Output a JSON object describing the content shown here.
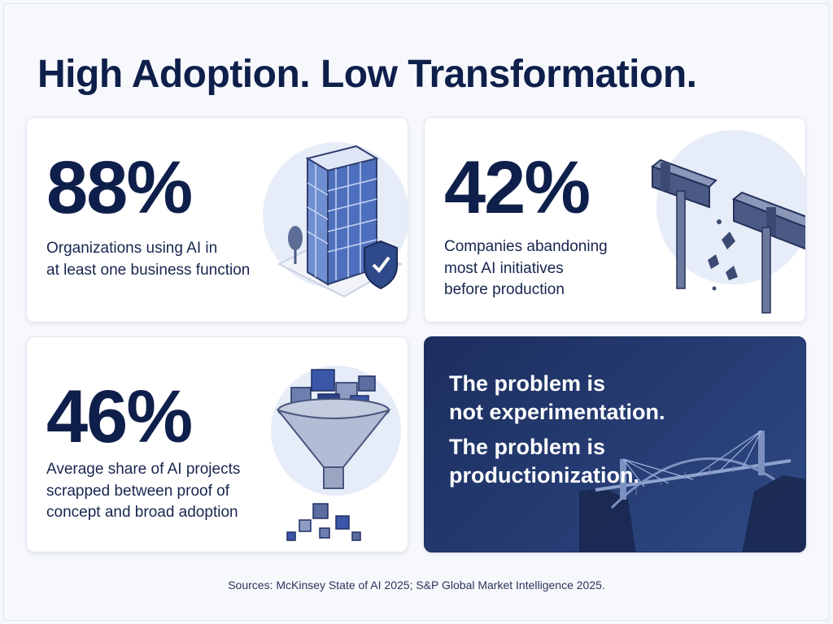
{
  "title": "High Adoption. Low Transformation.",
  "cards": [
    {
      "stat": "88%",
      "description": "Organizations using AI in\nat least one business function",
      "icon": "office-building-shield-icon"
    },
    {
      "stat": "42%",
      "description": "Companies abandoning\nmost AI initiatives\nbefore production",
      "icon": "broken-pipeline-icon"
    },
    {
      "stat": "46%",
      "description": "Average share of AI projects\nscrapped between proof of\nconcept and broad adoption",
      "icon": "funnel-cubes-icon"
    }
  ],
  "callout": {
    "line1": "The problem is",
    "line2": "not experimentation.",
    "line3": "The problem is",
    "line4": "productionization.",
    "icon": "bridge-icon"
  },
  "sources": "Sources: McKinsey State of AI 2025; S&P Global Market Intelligence 2025.",
  "colors": {
    "navy": "#0f1f4b",
    "callout_bg": "#1c2e5e",
    "accent": "#3b5bdb",
    "page_bg": "#f5f7fb"
  }
}
